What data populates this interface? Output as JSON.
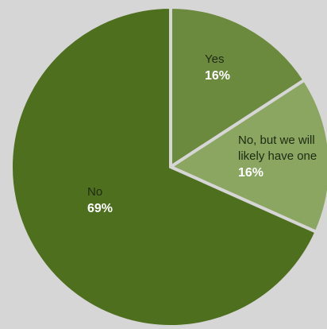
{
  "chart_data": {
    "type": "pie",
    "title": "",
    "slices": [
      {
        "label": "Yes",
        "value": 16,
        "display": "16%",
        "color": "#6b8a3e"
      },
      {
        "label_lines": [
          "No, but we will",
          "likely have one"
        ],
        "value": 16,
        "display": "16%",
        "color": "#8aa661"
      },
      {
        "label": "No",
        "value": 69,
        "display": "69%",
        "color": "#4e6f1d"
      }
    ],
    "start_angle_deg": 0,
    "direction": "clockwise",
    "legend": "none",
    "background": "#d6d6d6"
  }
}
